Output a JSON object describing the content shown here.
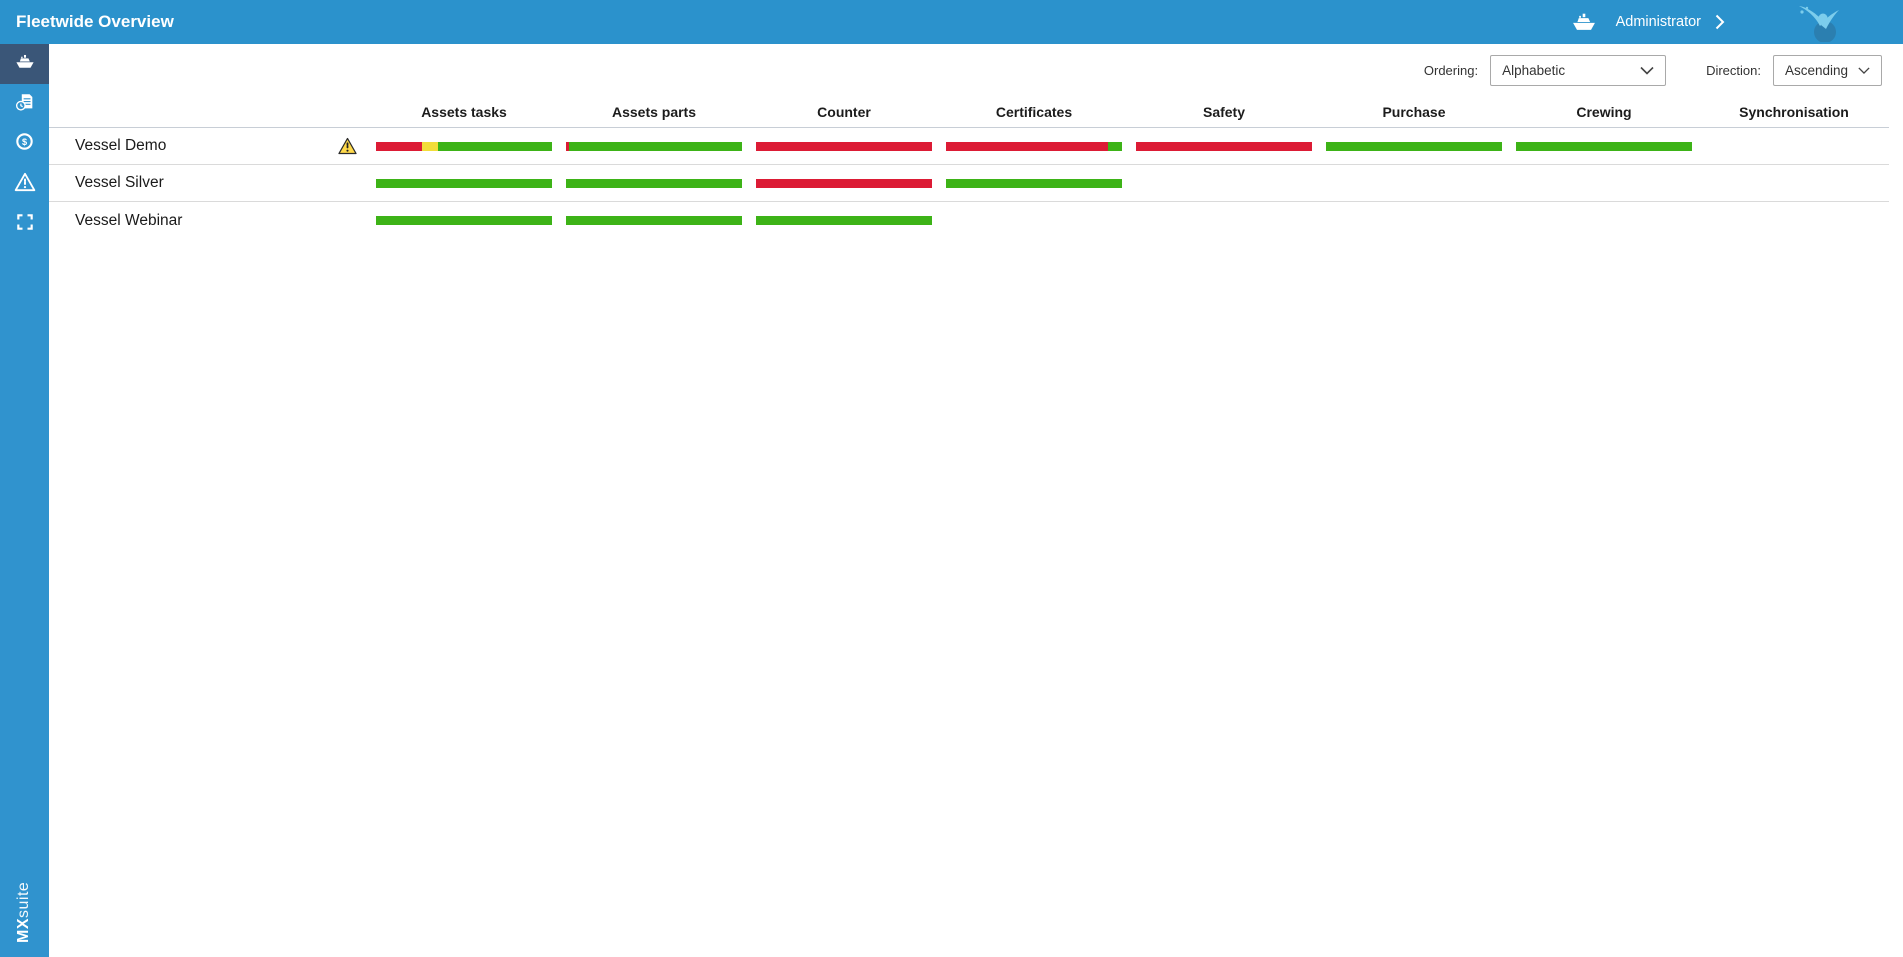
{
  "header": {
    "title": "Fleetwide Overview",
    "user_label": "Administrator",
    "icons": [
      "ship-icon",
      "chevron-right-icon",
      "mxsuite-logo-icon"
    ]
  },
  "sidebar": {
    "items": [
      {
        "id": "fleet-overview",
        "icon": "ship-icon",
        "active": true
      },
      {
        "id": "maintenance",
        "icon": "document-clock-icon",
        "active": false
      },
      {
        "id": "finance",
        "icon": "dollar-circle-icon",
        "active": false
      },
      {
        "id": "alerts",
        "icon": "warning-triangle-icon",
        "active": false
      },
      {
        "id": "fullscreen",
        "icon": "fullscreen-icon",
        "active": false
      }
    ],
    "logo_bold": "MX",
    "logo_light": "suite"
  },
  "controls": {
    "ordering_label": "Ordering:",
    "ordering_value": "Alphabetic",
    "direction_label": "Direction:",
    "direction_value": "Ascending"
  },
  "table": {
    "columns": [
      "Assets tasks",
      "Assets parts",
      "Counter",
      "Certificates",
      "Safety",
      "Purchase",
      "Crewing",
      "Synchronisation"
    ],
    "column_ids": [
      "assets-tasks",
      "assets-parts",
      "counter",
      "certificates",
      "safety",
      "purchase",
      "crewing",
      "synchronisation"
    ],
    "rows": [
      {
        "name": "Vessel Demo",
        "warning": true,
        "bars": [
          [
            {
              "color": "red",
              "pct": 26
            },
            {
              "color": "yellow",
              "pct": 9
            },
            {
              "color": "green",
              "pct": 65
            }
          ],
          [
            {
              "color": "red",
              "pct": 1.5
            },
            {
              "color": "green",
              "pct": 98.5
            }
          ],
          [
            {
              "color": "red",
              "pct": 100
            }
          ],
          [
            {
              "color": "red",
              "pct": 92
            },
            {
              "color": "green",
              "pct": 8
            }
          ],
          [
            {
              "color": "red",
              "pct": 100
            }
          ],
          [
            {
              "color": "green",
              "pct": 100
            }
          ],
          [
            {
              "color": "green",
              "pct": 100
            }
          ],
          []
        ]
      },
      {
        "name": "Vessel Silver",
        "warning": false,
        "bars": [
          [
            {
              "color": "green",
              "pct": 100
            }
          ],
          [
            {
              "color": "green",
              "pct": 100
            }
          ],
          [
            {
              "color": "red",
              "pct": 100
            }
          ],
          [
            {
              "color": "green",
              "pct": 100
            }
          ],
          [],
          [],
          [],
          []
        ]
      },
      {
        "name": "Vessel Webinar",
        "warning": false,
        "bars": [
          [
            {
              "color": "green",
              "pct": 100
            }
          ],
          [
            {
              "color": "green",
              "pct": 100
            }
          ],
          [
            {
              "color": "green",
              "pct": 100
            }
          ],
          [],
          [],
          [],
          [],
          []
        ]
      }
    ]
  },
  "colors": {
    "red": "#dc1b35",
    "green": "#3db317",
    "yellow": "#f2dd3a",
    "header_blue": "#2b92cc",
    "sidebar_blue": "#3093ce",
    "active_item_blue": "#3a5678",
    "logo_light_blue": "#7ccdec",
    "logo_dark_blue": "#2b7fb0",
    "warning_yellow": "#ffd94a"
  }
}
